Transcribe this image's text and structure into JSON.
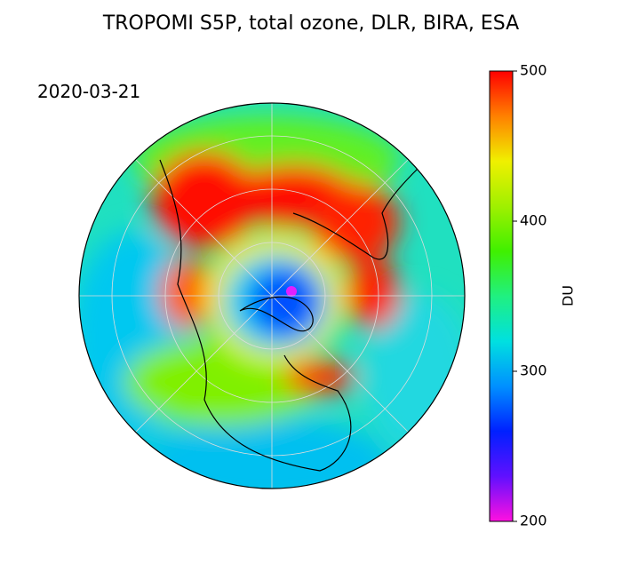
{
  "title": "TROPOMI S5P, total ozone, DLR, BIRA, ESA",
  "date": "2020-03-21",
  "colorbar": {
    "label": "DU",
    "lim": [
      200,
      500
    ],
    "ticks": [
      200,
      300,
      400,
      500
    ],
    "colors": [
      "#ff10e0",
      "#6010ff",
      "#0020ff",
      "#0090ff",
      "#00e0e0",
      "#20f080",
      "#40f000",
      "#a0f000",
      "#f0f000",
      "#ff8000",
      "#ff0000"
    ]
  }
}
